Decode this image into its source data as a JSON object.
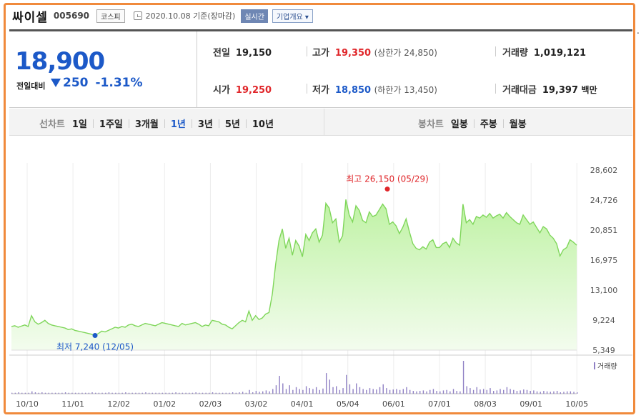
{
  "stock": {
    "name": "싸이셀",
    "code": "005690",
    "market": "코스피",
    "date_text": "2020.10.08 기준(장마감)",
    "live_label": "실시간",
    "company_label": "기업개요 ▾"
  },
  "quote": {
    "current": "18,900",
    "prev_label": "전일대비",
    "change": "250",
    "change_pct": "-1.31%",
    "prev_close_label": "전일",
    "prev_close": "19,150",
    "open_label": "시가",
    "open": "19,250",
    "high_label": "고가",
    "high": "19,350",
    "upper_limit": "(상한가 24,850)",
    "low_label": "저가",
    "low": "18,850",
    "lower_limit": "(하한가 13,450)",
    "volume_label": "거래량",
    "volume": "1,019,121",
    "amount_label": "거래대금",
    "amount": "19,397",
    "amount_unit": "백만"
  },
  "tabs": {
    "line_label": "선차트",
    "periods": [
      "1일",
      "1주일",
      "3개월",
      "1년",
      "3년",
      "5년",
      "10년"
    ],
    "selected_period": "1년",
    "candle_label": "봉차트",
    "candles": [
      "일봉",
      "주봉",
      "월봉"
    ]
  },
  "chart_data": {
    "type": "area",
    "x_ticks": [
      "10/10",
      "11/01",
      "12/02",
      "01/02",
      "02/03",
      "03/02",
      "04/01",
      "05/04",
      "06/01",
      "07/01",
      "08/03",
      "09/01",
      "10/05"
    ],
    "y_ticks": [
      "28,602",
      "24,726",
      "20,851",
      "16,975",
      "13,100",
      "9,224",
      "5,349"
    ],
    "ylim": [
      5349,
      28602
    ],
    "high_annotation": "최고 26,150 (05/29)",
    "low_annotation": "최저 7,240 (12/05)",
    "volume_label": "거래량",
    "series": [
      {
        "values": [
          8400,
          8500,
          8300,
          8450,
          8600,
          8400,
          9800,
          9000,
          8700,
          8900,
          9200,
          8800,
          8600,
          8500,
          8400,
          8300,
          8200,
          8000,
          8100,
          7900,
          7800,
          7700,
          7600,
          7500,
          7400,
          7240,
          7500,
          7800,
          7700,
          7900,
          8100,
          8300,
          8200,
          8400,
          8300,
          8600,
          8700,
          8500,
          8400,
          8600,
          8800,
          8700,
          8600,
          8500,
          8700,
          8900,
          8800,
          8700,
          8600,
          8500,
          8400,
          8800,
          8600,
          8700,
          8800,
          8900,
          8700,
          8400,
          8600,
          8500,
          9200,
          9100,
          9000,
          8700,
          8600,
          8300,
          8100,
          8500,
          8900,
          9200,
          9000,
          10400,
          9200,
          9800,
          9300,
          9500,
          10000,
          10200,
          12600,
          16500,
          19500,
          21000,
          18500,
          19800,
          17600,
          19500,
          18800,
          17400,
          20300,
          19500,
          20500,
          21000,
          19300,
          20200,
          24300,
          23700,
          21800,
          22300,
          19300,
          20100,
          24800,
          22800,
          21900,
          24000,
          23400,
          22100,
          21800,
          23200,
          22600,
          22800,
          23500,
          24200,
          23600,
          21600,
          21900,
          21400,
          20400,
          21200,
          22300,
          20600,
          19100,
          18500,
          18300,
          18700,
          18400,
          19300,
          19600,
          18600,
          18600,
          19100,
          19300,
          18600,
          19800,
          19200,
          18900,
          24200,
          21800,
          22200,
          21600,
          22600,
          22400,
          22800,
          22500,
          23000,
          22400,
          22700,
          22900,
          22400,
          23100,
          22600,
          22200,
          21800,
          21600,
          22800,
          22200,
          21600,
          21900,
          21200,
          20500,
          21300,
          21000,
          20200,
          19800,
          19100,
          17500,
          18300,
          18600,
          19600,
          19300,
          18900
        ]
      }
    ],
    "volume_bars": [
      2,
      2,
      3,
      2,
      2,
      2,
      5,
      3,
      2,
      3,
      2,
      2,
      2,
      2,
      2,
      2,
      3,
      2,
      2,
      2,
      2,
      2,
      2,
      2,
      3,
      2,
      2,
      2,
      2,
      3,
      2,
      2,
      2,
      2,
      3,
      2,
      2,
      2,
      2,
      2,
      3,
      2,
      2,
      2,
      2,
      2,
      2,
      2,
      2,
      3,
      2,
      2,
      2,
      2,
      2,
      3,
      2,
      2,
      2,
      2,
      3,
      2,
      2,
      2,
      2,
      2,
      3,
      2,
      3,
      4,
      2,
      8,
      3,
      6,
      4,
      5,
      7,
      5,
      10,
      18,
      38,
      22,
      10,
      18,
      8,
      14,
      10,
      8,
      16,
      12,
      10,
      14,
      8,
      11,
      44,
      30,
      14,
      16,
      8,
      12,
      40,
      20,
      10,
      22,
      14,
      10,
      8,
      12,
      10,
      9,
      14,
      20,
      12,
      8,
      9,
      10,
      8,
      10,
      14,
      8,
      6,
      5,
      6,
      7,
      5,
      8,
      10,
      6,
      5,
      7,
      8,
      5,
      10,
      6,
      5,
      70,
      16,
      12,
      8,
      14,
      9,
      10,
      8,
      12,
      6,
      7,
      10,
      8,
      14,
      10,
      8,
      6,
      7,
      9,
      8,
      6,
      7,
      5,
      4,
      6,
      5,
      4,
      5,
      6,
      3,
      4,
      5,
      5,
      4,
      3
    ]
  }
}
